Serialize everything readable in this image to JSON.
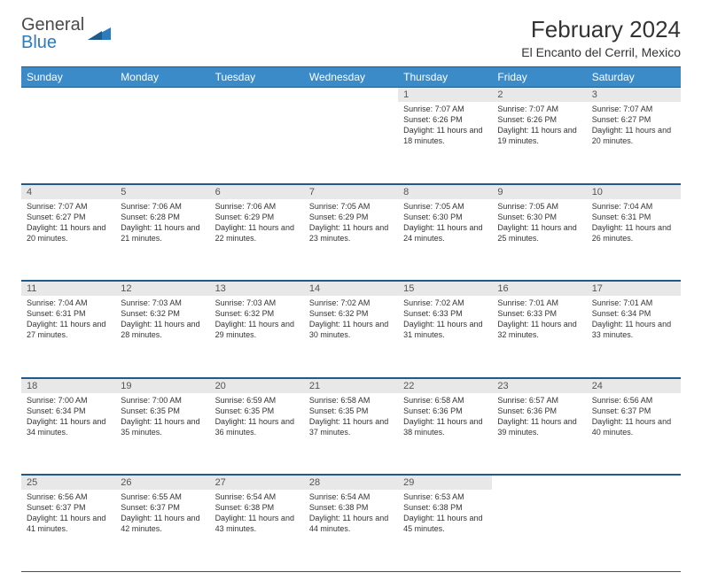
{
  "brand": {
    "part1": "General",
    "part2": "Blue"
  },
  "title": "February 2024",
  "location": "El Encanto del Cerril, Mexico",
  "colors": {
    "header_bg": "#3b8bc9",
    "header_text": "#ffffff",
    "border": "#1f5a8a",
    "daynum_bg": "#e8e8e8",
    "text": "#333333",
    "logo_gray": "#4a4a4a",
    "logo_blue": "#2b7bbf"
  },
  "weekdays": [
    "Sunday",
    "Monday",
    "Tuesday",
    "Wednesday",
    "Thursday",
    "Friday",
    "Saturday"
  ],
  "weeks": [
    [
      null,
      null,
      null,
      null,
      {
        "n": "1",
        "sr": "Sunrise: 7:07 AM",
        "ss": "Sunset: 6:26 PM",
        "dl": "Daylight: 11 hours and 18 minutes."
      },
      {
        "n": "2",
        "sr": "Sunrise: 7:07 AM",
        "ss": "Sunset: 6:26 PM",
        "dl": "Daylight: 11 hours and 19 minutes."
      },
      {
        "n": "3",
        "sr": "Sunrise: 7:07 AM",
        "ss": "Sunset: 6:27 PM",
        "dl": "Daylight: 11 hours and 20 minutes."
      }
    ],
    [
      {
        "n": "4",
        "sr": "Sunrise: 7:07 AM",
        "ss": "Sunset: 6:27 PM",
        "dl": "Daylight: 11 hours and 20 minutes."
      },
      {
        "n": "5",
        "sr": "Sunrise: 7:06 AM",
        "ss": "Sunset: 6:28 PM",
        "dl": "Daylight: 11 hours and 21 minutes."
      },
      {
        "n": "6",
        "sr": "Sunrise: 7:06 AM",
        "ss": "Sunset: 6:29 PM",
        "dl": "Daylight: 11 hours and 22 minutes."
      },
      {
        "n": "7",
        "sr": "Sunrise: 7:05 AM",
        "ss": "Sunset: 6:29 PM",
        "dl": "Daylight: 11 hours and 23 minutes."
      },
      {
        "n": "8",
        "sr": "Sunrise: 7:05 AM",
        "ss": "Sunset: 6:30 PM",
        "dl": "Daylight: 11 hours and 24 minutes."
      },
      {
        "n": "9",
        "sr": "Sunrise: 7:05 AM",
        "ss": "Sunset: 6:30 PM",
        "dl": "Daylight: 11 hours and 25 minutes."
      },
      {
        "n": "10",
        "sr": "Sunrise: 7:04 AM",
        "ss": "Sunset: 6:31 PM",
        "dl": "Daylight: 11 hours and 26 minutes."
      }
    ],
    [
      {
        "n": "11",
        "sr": "Sunrise: 7:04 AM",
        "ss": "Sunset: 6:31 PM",
        "dl": "Daylight: 11 hours and 27 minutes."
      },
      {
        "n": "12",
        "sr": "Sunrise: 7:03 AM",
        "ss": "Sunset: 6:32 PM",
        "dl": "Daylight: 11 hours and 28 minutes."
      },
      {
        "n": "13",
        "sr": "Sunrise: 7:03 AM",
        "ss": "Sunset: 6:32 PM",
        "dl": "Daylight: 11 hours and 29 minutes."
      },
      {
        "n": "14",
        "sr": "Sunrise: 7:02 AM",
        "ss": "Sunset: 6:32 PM",
        "dl": "Daylight: 11 hours and 30 minutes."
      },
      {
        "n": "15",
        "sr": "Sunrise: 7:02 AM",
        "ss": "Sunset: 6:33 PM",
        "dl": "Daylight: 11 hours and 31 minutes."
      },
      {
        "n": "16",
        "sr": "Sunrise: 7:01 AM",
        "ss": "Sunset: 6:33 PM",
        "dl": "Daylight: 11 hours and 32 minutes."
      },
      {
        "n": "17",
        "sr": "Sunrise: 7:01 AM",
        "ss": "Sunset: 6:34 PM",
        "dl": "Daylight: 11 hours and 33 minutes."
      }
    ],
    [
      {
        "n": "18",
        "sr": "Sunrise: 7:00 AM",
        "ss": "Sunset: 6:34 PM",
        "dl": "Daylight: 11 hours and 34 minutes."
      },
      {
        "n": "19",
        "sr": "Sunrise: 7:00 AM",
        "ss": "Sunset: 6:35 PM",
        "dl": "Daylight: 11 hours and 35 minutes."
      },
      {
        "n": "20",
        "sr": "Sunrise: 6:59 AM",
        "ss": "Sunset: 6:35 PM",
        "dl": "Daylight: 11 hours and 36 minutes."
      },
      {
        "n": "21",
        "sr": "Sunrise: 6:58 AM",
        "ss": "Sunset: 6:35 PM",
        "dl": "Daylight: 11 hours and 37 minutes."
      },
      {
        "n": "22",
        "sr": "Sunrise: 6:58 AM",
        "ss": "Sunset: 6:36 PM",
        "dl": "Daylight: 11 hours and 38 minutes."
      },
      {
        "n": "23",
        "sr": "Sunrise: 6:57 AM",
        "ss": "Sunset: 6:36 PM",
        "dl": "Daylight: 11 hours and 39 minutes."
      },
      {
        "n": "24",
        "sr": "Sunrise: 6:56 AM",
        "ss": "Sunset: 6:37 PM",
        "dl": "Daylight: 11 hours and 40 minutes."
      }
    ],
    [
      {
        "n": "25",
        "sr": "Sunrise: 6:56 AM",
        "ss": "Sunset: 6:37 PM",
        "dl": "Daylight: 11 hours and 41 minutes."
      },
      {
        "n": "26",
        "sr": "Sunrise: 6:55 AM",
        "ss": "Sunset: 6:37 PM",
        "dl": "Daylight: 11 hours and 42 minutes."
      },
      {
        "n": "27",
        "sr": "Sunrise: 6:54 AM",
        "ss": "Sunset: 6:38 PM",
        "dl": "Daylight: 11 hours and 43 minutes."
      },
      {
        "n": "28",
        "sr": "Sunrise: 6:54 AM",
        "ss": "Sunset: 6:38 PM",
        "dl": "Daylight: 11 hours and 44 minutes."
      },
      {
        "n": "29",
        "sr": "Sunrise: 6:53 AM",
        "ss": "Sunset: 6:38 PM",
        "dl": "Daylight: 11 hours and 45 minutes."
      },
      null,
      null
    ]
  ]
}
